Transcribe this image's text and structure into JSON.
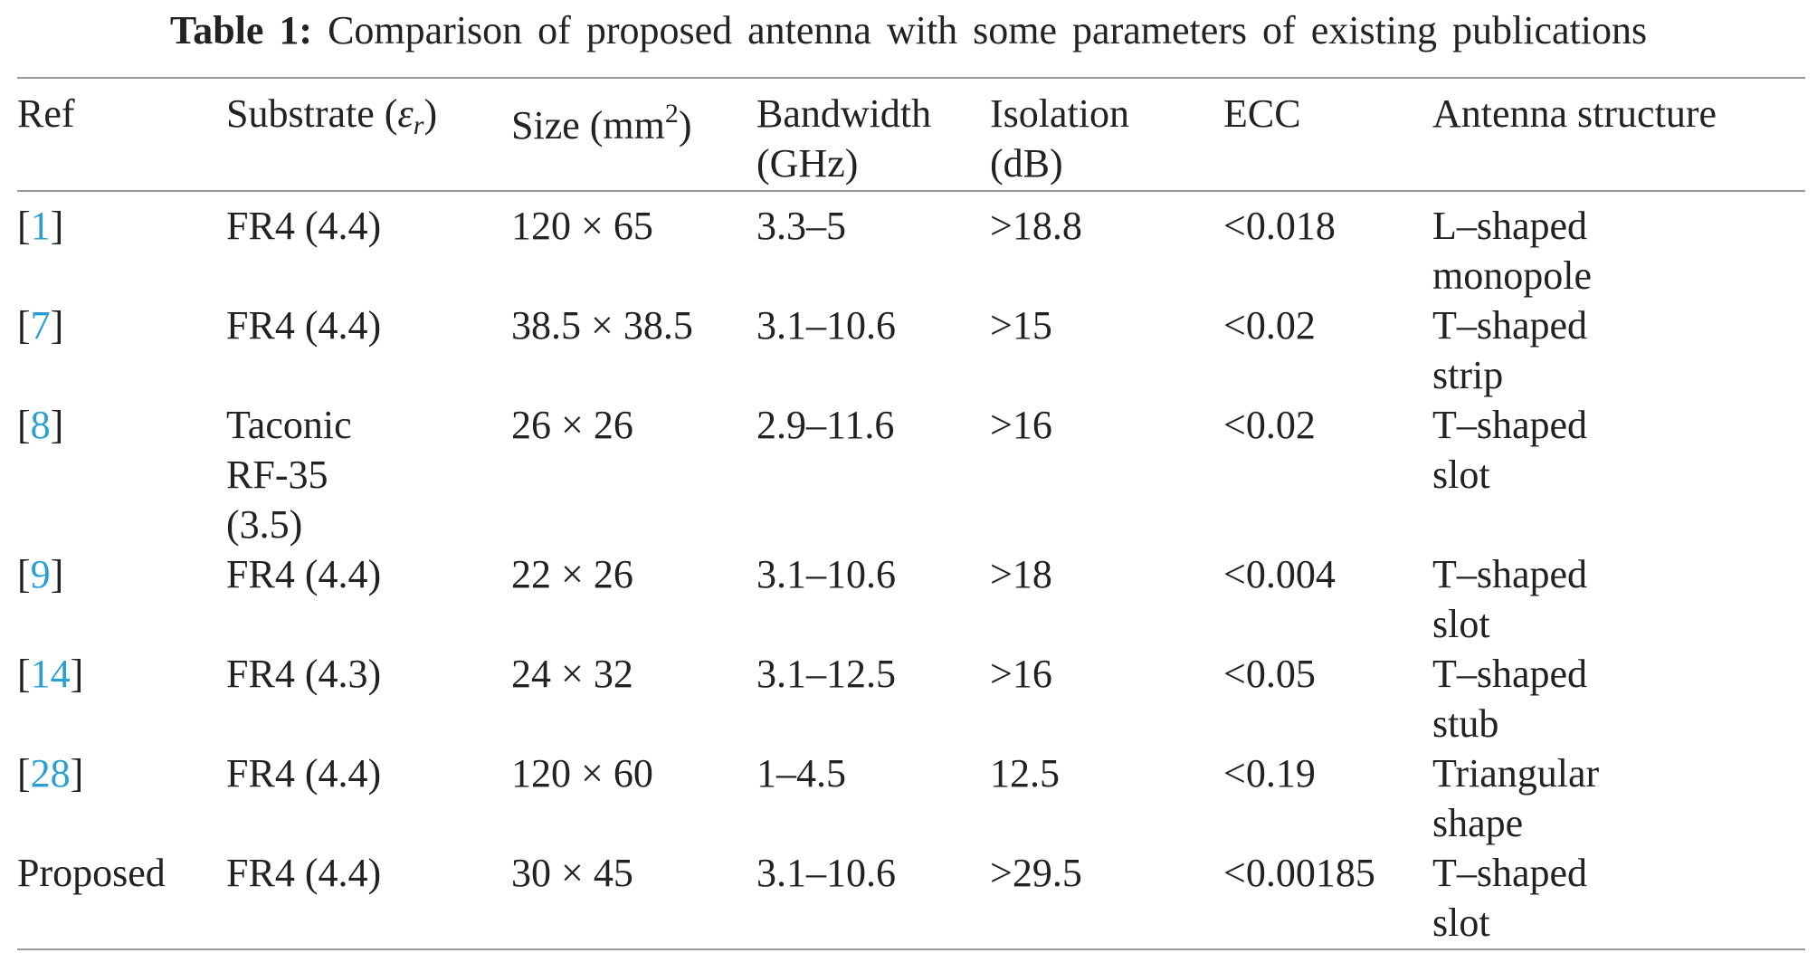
{
  "caption": {
    "label": "Table 1:",
    "text": "Comparison of proposed antenna with some parameters of existing publications"
  },
  "table": {
    "headers": [
      "Ref",
      [
        [
          {
            "text": "Substrate ("
          },
          {
            "text": "ε",
            "style": "italic"
          },
          {
            "text": "r",
            "style": "sub"
          },
          {
            "text": ")"
          }
        ]
      ],
      [
        [
          {
            "text": "Size (mm"
          },
          {
            "text": "2",
            "style": "sup"
          },
          {
            "text": ")"
          }
        ]
      ],
      [
        "Bandwidth",
        "(GHz)"
      ],
      [
        "Isolation",
        "(dB)"
      ],
      "ECC",
      "Antenna structure"
    ],
    "rows": [
      [
        [
          [
            {
              "text": "["
            },
            {
              "text": "1",
              "style": "link"
            },
            {
              "text": "]"
            }
          ]
        ],
        "FR4 (4.4)",
        "120 × 65",
        "3.3–5",
        ">18.8",
        "<0.018",
        [
          "L–shaped",
          "monopole"
        ]
      ],
      [
        [
          [
            {
              "text": "["
            },
            {
              "text": "7",
              "style": "link"
            },
            {
              "text": "]"
            }
          ]
        ],
        "FR4 (4.4)",
        "38.5 × 38.5",
        "3.1–10.6",
        ">15",
        "<0.02",
        [
          "T–shaped",
          "strip"
        ]
      ],
      [
        [
          [
            {
              "text": "["
            },
            {
              "text": "8",
              "style": "link"
            },
            {
              "text": "]"
            }
          ]
        ],
        [
          "Taconic",
          "RF-35",
          "(3.5)"
        ],
        "26 × 26",
        "2.9–11.6",
        ">16",
        "<0.02",
        [
          "T–shaped",
          "slot"
        ]
      ],
      [
        [
          [
            {
              "text": "["
            },
            {
              "text": "9",
              "style": "link"
            },
            {
              "text": "]"
            }
          ]
        ],
        "FR4 (4.4)",
        "22 × 26",
        "3.1–10.6",
        ">18",
        "<0.004",
        [
          "T–shaped",
          "slot"
        ]
      ],
      [
        [
          [
            {
              "text": "["
            },
            {
              "text": "14",
              "style": "link"
            },
            {
              "text": "]"
            }
          ]
        ],
        "FR4 (4.3)",
        "24 × 32",
        "3.1–12.5",
        ">16",
        "<0.05",
        [
          "T–shaped",
          "stub"
        ]
      ],
      [
        [
          [
            {
              "text": "["
            },
            {
              "text": "28",
              "style": "link"
            },
            {
              "text": "]"
            }
          ]
        ],
        "FR4 (4.4)",
        "120 × 60",
        "1–4.5",
        "12.5",
        "<0.19",
        [
          "Triangular",
          "shape"
        ]
      ],
      [
        "Proposed",
        "FR4 (4.4)",
        "30 × 45",
        "3.1–10.6",
        ">29.5",
        "<0.00185",
        [
          "T–shaped",
          "slot"
        ]
      ]
    ]
  }
}
